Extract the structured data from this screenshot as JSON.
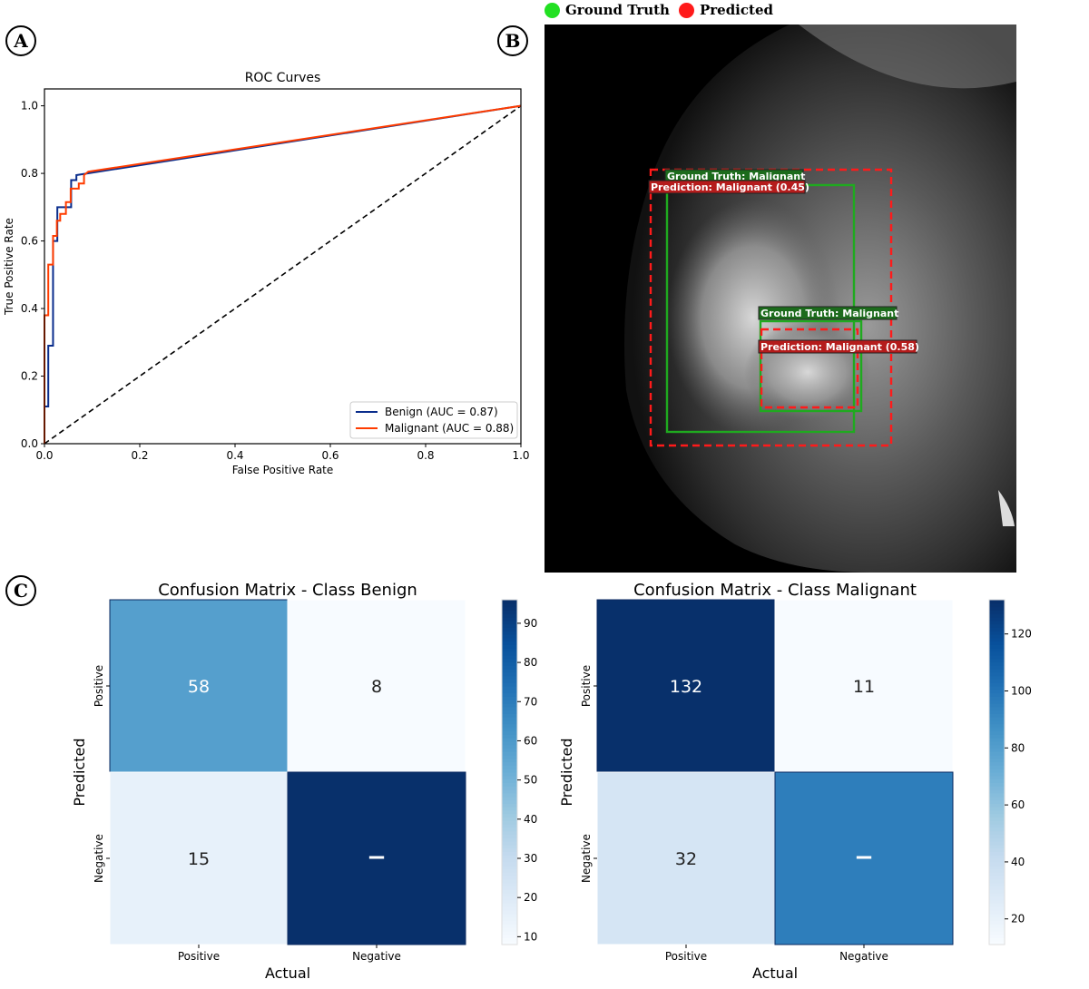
{
  "panels": {
    "a": "A",
    "b": "B",
    "c": "C"
  },
  "chart_data": [
    {
      "type": "line",
      "title": "ROC Curves",
      "xlabel": "False Positive Rate",
      "ylabel": "True Positive Rate",
      "xlim": [
        0,
        1
      ],
      "ylim": [
        0,
        1.05
      ],
      "xticks": [
        "0.0",
        "0.2",
        "0.4",
        "0.6",
        "0.8",
        "1.0"
      ],
      "yticks": [
        "0.0",
        "0.2",
        "0.4",
        "0.6",
        "0.8",
        "1.0"
      ],
      "legend_position": "lower-right",
      "grid": false,
      "series": [
        {
          "name": "Benign (AUC = 0.87)",
          "color": "#0a2d8c",
          "x": [
            0,
            0,
            0.008,
            0.008,
            0.018,
            0.018,
            0.027,
            0.027,
            0.056,
            0.056,
            0.067,
            0.067,
            0.09,
            1
          ],
          "y": [
            0,
            0.11,
            0.11,
            0.29,
            0.29,
            0.6,
            0.6,
            0.7,
            0.7,
            0.78,
            0.78,
            0.795,
            0.8,
            1
          ]
        },
        {
          "name": "Malignant (AUC = 0.88)",
          "color": "#ff3c00",
          "x": [
            0,
            0,
            0.008,
            0.008,
            0.018,
            0.018,
            0.026,
            0.026,
            0.033,
            0.033,
            0.045,
            0.045,
            0.055,
            0.055,
            0.072,
            0.072,
            0.083,
            0.083,
            0.092,
            1
          ],
          "y": [
            0,
            0.38,
            0.38,
            0.53,
            0.53,
            0.615,
            0.615,
            0.66,
            0.66,
            0.68,
            0.68,
            0.715,
            0.715,
            0.755,
            0.755,
            0.77,
            0.77,
            0.795,
            0.805,
            1
          ]
        },
        {
          "name": "",
          "color": "#000000",
          "style": "dashed",
          "x": [
            0,
            1
          ],
          "y": [
            0,
            1
          ]
        }
      ]
    },
    {
      "type": "heatmap",
      "title": "Confusion Matrix - Class Benign",
      "xlabel": "Actual",
      "ylabel": "Predicted",
      "xticks": [
        "Positive",
        "Negative"
      ],
      "yticks": [
        "Positive",
        "Negative"
      ],
      "cells": [
        [
          {
            "value": 58,
            "label": "58"
          },
          {
            "value": 8,
            "label": "8"
          }
        ],
        [
          {
            "value": 15,
            "label": "15"
          },
          {
            "value": 96,
            "label": "−"
          }
        ]
      ],
      "colormap": "Blues",
      "vrange": [
        8,
        96
      ],
      "colorbar_ticks": [
        10,
        20,
        30,
        40,
        50,
        60,
        70,
        80,
        90
      ]
    },
    {
      "type": "heatmap",
      "title": "Confusion Matrix - Class Malignant",
      "xlabel": "Actual",
      "ylabel": "Predicted",
      "xticks": [
        "Positive",
        "Negative"
      ],
      "yticks": [
        "Positive",
        "Negative"
      ],
      "cells": [
        [
          {
            "value": 132,
            "label": "132"
          },
          {
            "value": 11,
            "label": "11"
          }
        ],
        [
          {
            "value": 32,
            "label": "32"
          },
          {
            "value": 96,
            "label": "−"
          }
        ]
      ],
      "colormap": "Blues",
      "vrange": [
        11,
        132
      ],
      "colorbar_ticks": [
        20,
        40,
        60,
        80,
        100,
        120
      ]
    }
  ],
  "detection": {
    "legend": {
      "ground_truth": "Ground Truth",
      "predicted": "Predicted",
      "gt_color": "#22e022",
      "pred_color": "#ff1a1a"
    },
    "boxes": [
      {
        "kind": "gt",
        "label": "Ground Truth: Malignant"
      },
      {
        "kind": "pred",
        "label": "Prediction: Malignant (0.45)"
      },
      {
        "kind": "gt",
        "label": "Ground Truth: Malignant"
      },
      {
        "kind": "pred",
        "label": "Prediction: Malignant (0.58)"
      }
    ]
  }
}
